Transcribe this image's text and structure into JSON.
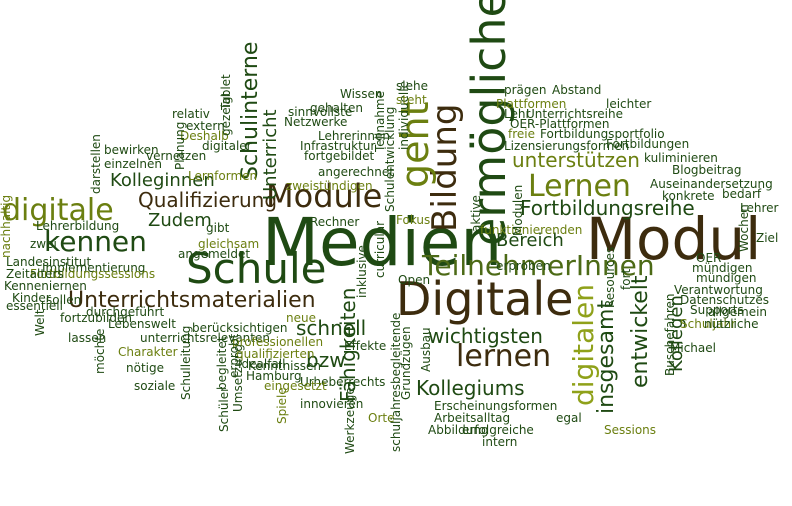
{
  "palette": {
    "dark_green": "#1f4a13",
    "olive": "#6b7f10",
    "dark_brown": "#3d2c0e",
    "lime": "#8fa11a",
    "mid_green": "#4c6a16"
  },
  "words": [
    "Medien",
    "Modul",
    "Schule",
    "Digitale",
    "Module",
    "ermöglichen",
    "TeilnehmerInnen",
    "Lernen",
    "kennen",
    "digitale",
    "Bildung",
    "geht",
    "Unterrichtsmaterialien",
    "digitalen",
    "lernen",
    "Qualifizierung",
    "Fortbildungsreihe",
    "unterstützen",
    "Schulinterne",
    "Unterricht",
    "Kolleginnen",
    "Zudem",
    "wichtigsten",
    "Kollegiums",
    "insgesamt",
    "entwickelt",
    "Fähigkeiten",
    "schnell",
    "bzw",
    "Bereich",
    "Kollegen",
    "Lehrerbildung",
    "Implementierung",
    "Landesinstitut",
    "Fortbildungssessions",
    "Kenneniernen",
    "Zeitalters",
    "Kinder",
    "zwei",
    "nachhaltig",
    "essentiell",
    "sollen",
    "Welt",
    "fortzubilden",
    "Lebenswelt",
    "lassen",
    "möchte",
    "Charakter",
    "nötige",
    "soziale",
    "Schulleitung",
    "Schüler",
    "Umsetzung",
    "Hamburg",
    "Idealfall",
    "Kenntnissen",
    "Urheberrechts",
    "Werkzeuge",
    "Spiele",
    "innovieren",
    "Orte",
    "Ausbau",
    "Grundzügen",
    "schuljahresbegleitende",
    "Arbeitsalltag",
    "Erscheinungsformen",
    "egal",
    "Abbildung",
    "intern",
    "erfolgreiche",
    "Sessions",
    "Buschefahren",
    "Michael",
    "Schuljahr",
    "Datenschutzes",
    "allgemein",
    "nützliche",
    "Verantwortung",
    "Supports",
    "mündigen",
    "Ziel",
    "Lehrer",
    "bedarf",
    "konkrete",
    "Auseinandersetzung",
    "Blogbeitrag",
    "Wochen",
    "kuliminieren",
    "Fortbildungen",
    "Fortbildungsportfolio",
    "Lizensierungsformen",
    "freie",
    "OER-Plattformen",
    "Lehr",
    "Unterrichtsreihe",
    "Plattformen",
    "leichter",
    "prägen",
    "Abstand",
    "funktionierenden",
    "erproben",
    "Open",
    "Resources",
    "Modulen",
    "aktive",
    "Fokus",
    "Rechner",
    "zweistündigen",
    "angerechnet",
    "fortgebildet",
    "Lehrerinnen",
    "Infrastruktur",
    "Netzwerke",
    "Wissen",
    "gehalten",
    "sinnvollste",
    "Teilnahme",
    "Schulentwicklung",
    "individuelle",
    "siehe",
    "steht",
    "Deshalb",
    "Lernformen",
    "digitaler",
    "gezeigt",
    "extern",
    "relativ",
    "Planung",
    "Tablet",
    "bewirken",
    "einzelnen",
    "vernetzen",
    "darstellen",
    "gleichsam",
    "gibt",
    "angemeldet",
    "durchgeführt",
    "berücksichtigen",
    "unterrichtsrelevanten",
    "professionellen",
    "qualifizierten",
    "eingesetzt",
    "begleitet",
    "erprobt",
    "neue",
    "Effekte",
    "inklusive",
    "curricular",
    "fort",
    "OER",
    "mündigen"
  ]
}
